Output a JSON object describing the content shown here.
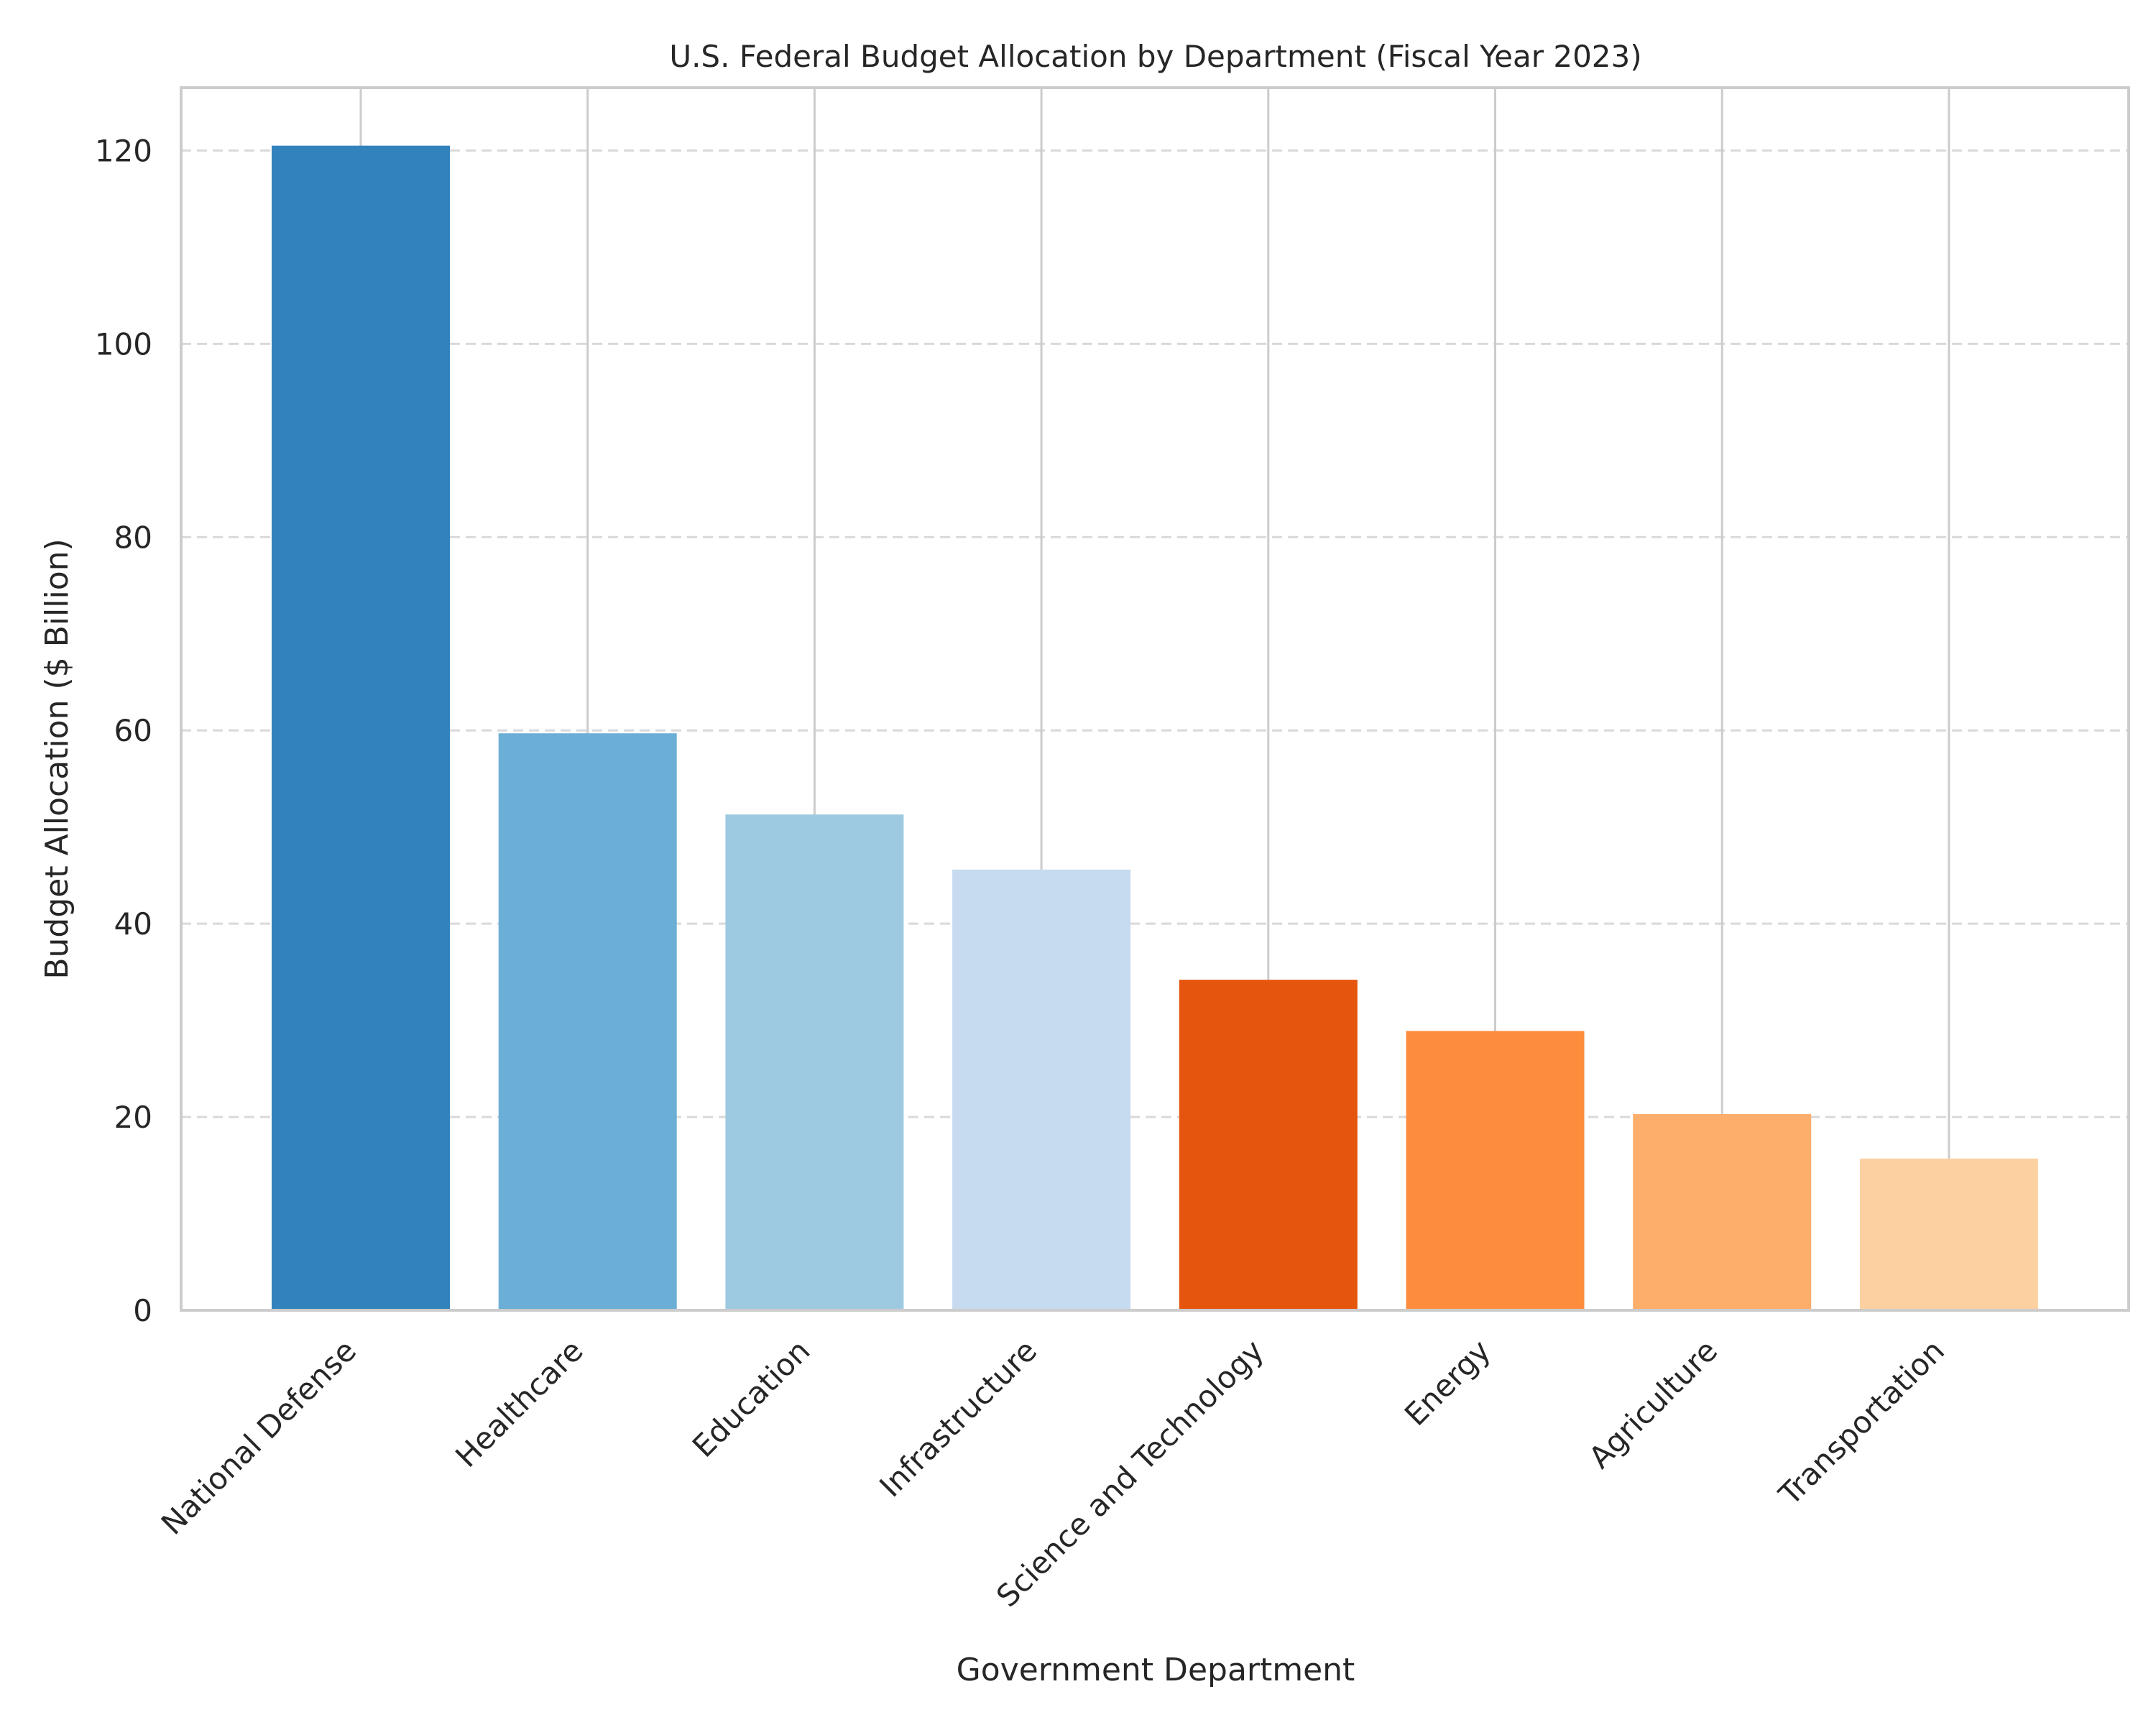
{
  "chart_data": {
    "type": "bar",
    "title": "U.S. Federal Budget Allocation by Department (Fiscal Year 2023)",
    "xlabel": "Government Department",
    "ylabel": "Budget Allocation ($ Billion)",
    "categories": [
      "National Defense",
      "Healthcare",
      "Education",
      "Infrastructure",
      "Science and Technology",
      "Energy",
      "Agriculture",
      "Transportation"
    ],
    "values": [
      120.5,
      59.7,
      51.3,
      45.6,
      34.2,
      28.9,
      20.3,
      15.7
    ],
    "colors": [
      "#3182bd",
      "#6baed6",
      "#9ecae1",
      "#c6dbef",
      "#e6550d",
      "#fd8d3c",
      "#fdae6b",
      "#fdd0a2"
    ],
    "ylim": [
      0,
      126.5
    ],
    "yticks": [
      0,
      20,
      40,
      60,
      80,
      100,
      120
    ],
    "grid": true,
    "legend": "none"
  }
}
